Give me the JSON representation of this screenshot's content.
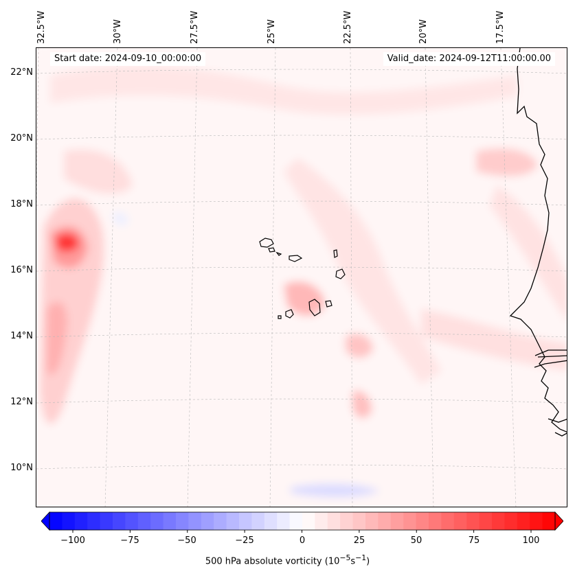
{
  "header": {
    "start_date": "Start date: 2024-09-10_00:00:00",
    "valid_date": "Valid_date: 2024-09-12T11:00:00.00"
  },
  "latitude_labels": [
    "22°N",
    "20°N",
    "18°N",
    "16°N",
    "14°N",
    "12°N",
    "10°N"
  ],
  "longitude_labels": [
    "32.5°W",
    "30°W",
    "27.5°W",
    "25°W",
    "22.5°W",
    "20°W",
    "17.5°W"
  ],
  "colorbar": {
    "ticks": [
      "−100",
      "−75",
      "−50",
      "−25",
      "0",
      "25",
      "50",
      "75",
      "100"
    ],
    "label_text": "500 hPa absolute vorticity (10",
    "label_exp1": "−5",
    "label_mid": "s",
    "label_exp2": "−1",
    "label_end": ")",
    "min": -100,
    "max": 100,
    "color_low": "#0000ff",
    "color_mid": "#ffffff",
    "color_high": "#ff0000"
  },
  "colors": {
    "coastline": "#000000",
    "gridline": "#b0b0b0",
    "background": "#fff8f8"
  }
}
